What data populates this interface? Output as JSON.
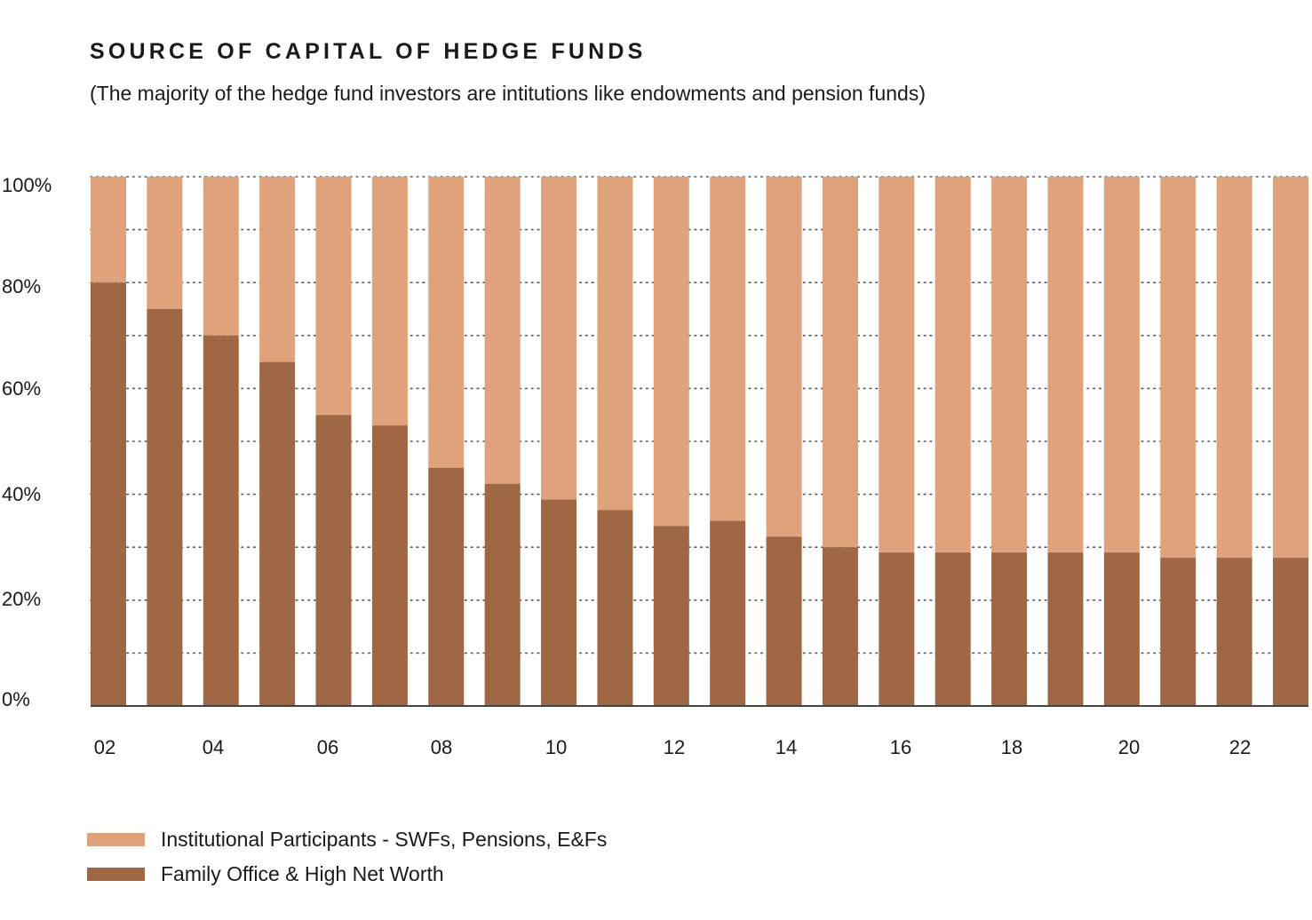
{
  "title": "SOURCE OF CAPITAL OF HEDGE FUNDS",
  "subtitle": "(The majority of the hedge fund investors are intitutions like endowments and pension funds)",
  "colors": {
    "institutional": "#dfa27a",
    "family": "#9f6744",
    "grid": "#555555",
    "axis": "#444444"
  },
  "chart_data": {
    "type": "bar",
    "stacked": true,
    "categories": [
      "02",
      "03",
      "04",
      "05",
      "06",
      "07",
      "08",
      "09",
      "10",
      "11",
      "12",
      "13",
      "14",
      "15",
      "16",
      "17",
      "18",
      "19",
      "20",
      "21",
      "22",
      "23"
    ],
    "x_tick_labels": [
      "02",
      "04",
      "06",
      "08",
      "10",
      "12",
      "14",
      "16",
      "18",
      "20",
      "22"
    ],
    "y_tick_labels": [
      "0%",
      "20%",
      "40%",
      "60%",
      "80%",
      "100%"
    ],
    "ylim": [
      0,
      100
    ],
    "grid": "dotted horizontal",
    "series": [
      {
        "name": "Family Office & High Net Worth",
        "color": "#9f6744",
        "values": [
          80,
          75,
          70,
          65,
          55,
          53,
          45,
          42,
          39,
          37,
          34,
          35,
          32,
          30,
          29,
          29,
          29,
          29,
          29,
          28,
          28,
          28
        ]
      },
      {
        "name": "Institutional Participants - SWFs, Pensions, E&Fs",
        "color": "#dfa27a",
        "values": [
          20,
          25,
          30,
          35,
          45,
          47,
          55,
          58,
          61,
          63,
          66,
          65,
          68,
          70,
          71,
          71,
          71,
          71,
          71,
          72,
          72,
          72
        ]
      }
    ],
    "legend": [
      {
        "label": "Institutional Participants - SWFs, Pensions, E&Fs",
        "color": "#dfa27a"
      },
      {
        "label": "Family Office & High Net Worth",
        "color": "#9f6744"
      }
    ],
    "legend_position": "bottom-left"
  }
}
